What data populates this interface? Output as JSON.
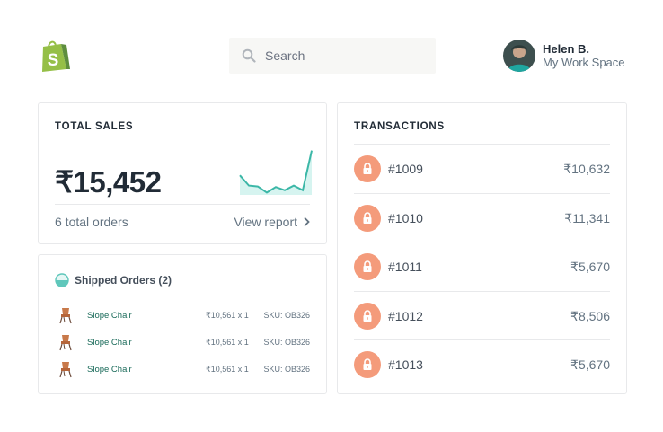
{
  "brand": {
    "logo_icon": "shopify-bag-icon",
    "logo_letter": "S",
    "color": "#95bf47"
  },
  "search": {
    "placeholder": "Search",
    "icon": "search-icon"
  },
  "user": {
    "name": "Helen B.",
    "workspace": "My Work Space",
    "avatar_icon": "user-avatar"
  },
  "sales": {
    "title": "TOTAL SALES",
    "amount": "₹15,452",
    "orders": "6 total orders",
    "view_report": "View report",
    "sparkline": [
      0.42,
      0.2,
      0.18,
      0.05,
      0.17,
      0.1,
      0.2,
      0.1,
      0.95
    ],
    "accent": "#3bb7a7"
  },
  "shipped": {
    "title": "Shipped Orders (2)",
    "items": [
      {
        "name": "Slope Chair",
        "qty": "₹10,561 x 1",
        "sku": "SKU: OB326"
      },
      {
        "name": "Slope Chair",
        "qty": "₹10,561 x 1",
        "sku": "SKU: OB326"
      },
      {
        "name": "Slope Chair",
        "qty": "₹10,561 x 1",
        "sku": "SKU: OB326"
      }
    ]
  },
  "transactions": {
    "title": "TRANSACTIONS",
    "lock_color": "#f49b7b",
    "items": [
      {
        "id": "#1009",
        "amount": "₹10,632"
      },
      {
        "id": "#1010",
        "amount": "₹11,341"
      },
      {
        "id": "#1011",
        "amount": "₹5,670"
      },
      {
        "id": "#1012",
        "amount": "₹8,506"
      },
      {
        "id": "#1013",
        "amount": "₹5,670"
      }
    ]
  }
}
